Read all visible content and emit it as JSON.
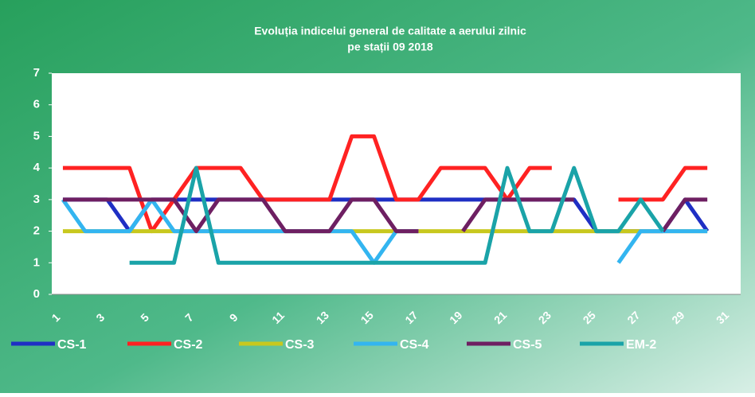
{
  "chart_data": {
    "type": "line",
    "title": [
      "Evoluția indicelui general de calitate a aerului zilnic",
      "pe stații 09 2018"
    ],
    "categories": [
      "1",
      null,
      "3",
      null,
      "5",
      null,
      "7",
      null,
      "9",
      null,
      "11",
      null,
      "13",
      null,
      "15",
      null,
      "17",
      null,
      "19",
      null,
      "21",
      null,
      "23",
      null,
      "25",
      null,
      "27",
      null,
      "29",
      null,
      "31"
    ],
    "ylim": [
      0,
      7
    ],
    "yticks": [
      0,
      1,
      2,
      3,
      4,
      5,
      6,
      7
    ],
    "series": [
      {
        "name": "CS-1",
        "color": "#1f2fc4",
        "values": [
          3,
          3,
          3,
          2,
          3,
          3,
          3,
          3,
          3,
          3,
          3,
          3,
          3,
          3,
          3,
          3,
          3,
          3,
          3,
          3,
          3,
          3,
          3,
          3,
          2,
          2,
          2,
          2,
          3,
          2,
          null
        ]
      },
      {
        "name": "CS-2",
        "color": "#ff2222",
        "values": [
          4,
          4,
          4,
          4,
          2,
          3,
          4,
          4,
          4,
          3,
          3,
          3,
          3,
          5,
          5,
          3,
          3,
          4,
          4,
          4,
          3,
          4,
          4,
          null,
          null,
          3,
          3,
          3,
          4,
          4,
          null
        ]
      },
      {
        "name": "CS-3",
        "color": "#c8c81e",
        "values": [
          2,
          2,
          2,
          2,
          2,
          2,
          2,
          2,
          2,
          2,
          2,
          2,
          2,
          2,
          2,
          2,
          2,
          2,
          2,
          2,
          2,
          2,
          2,
          2,
          2,
          2,
          2,
          2,
          2,
          2,
          null
        ]
      },
      {
        "name": "CS-4",
        "color": "#33b5f0",
        "values": [
          3,
          2,
          2,
          2,
          3,
          2,
          2,
          2,
          2,
          2,
          2,
          2,
          2,
          2,
          1,
          2,
          2,
          null,
          null,
          null,
          null,
          null,
          null,
          null,
          null,
          1,
          2,
          2,
          2,
          2,
          null
        ]
      },
      {
        "name": "CS-5",
        "color": "#6e1f62",
        "values": [
          3,
          3,
          3,
          3,
          3,
          3,
          2,
          3,
          3,
          3,
          2,
          2,
          2,
          3,
          3,
          2,
          2,
          null,
          2,
          3,
          3,
          3,
          3,
          3,
          null,
          null,
          null,
          2,
          3,
          3,
          null
        ]
      },
      {
        "name": "EM-2",
        "color": "#1aa3a8",
        "values": [
          null,
          null,
          null,
          1,
          1,
          1,
          4,
          1,
          1,
          1,
          1,
          1,
          1,
          1,
          1,
          1,
          1,
          1,
          1,
          1,
          4,
          2,
          2,
          4,
          2,
          2,
          3,
          2,
          null,
          null,
          null
        ]
      }
    ]
  }
}
